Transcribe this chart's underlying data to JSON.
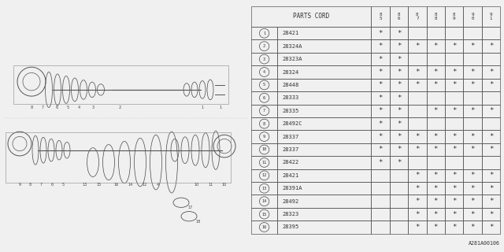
{
  "title": "A281A00106",
  "parts_cord_label": "PARTS CORD",
  "col_headers": [
    "8\n5",
    "8\n6",
    "8\n7",
    "8\n8",
    "8\n9",
    "9\n0",
    "9\n1"
  ],
  "rows": [
    {
      "num": 1,
      "code": "28421",
      "marks": [
        1,
        1,
        0,
        0,
        0,
        0,
        0
      ]
    },
    {
      "num": 2,
      "code": "28324A",
      "marks": [
        1,
        1,
        1,
        1,
        1,
        1,
        1
      ]
    },
    {
      "num": 3,
      "code": "28323A",
      "marks": [
        1,
        1,
        0,
        0,
        0,
        0,
        0
      ]
    },
    {
      "num": 4,
      "code": "28324",
      "marks": [
        1,
        1,
        1,
        1,
        1,
        1,
        1
      ]
    },
    {
      "num": 5,
      "code": "28448",
      "marks": [
        1,
        1,
        1,
        1,
        1,
        1,
        1
      ]
    },
    {
      "num": 6,
      "code": "28333",
      "marks": [
        1,
        1,
        0,
        0,
        0,
        0,
        0
      ]
    },
    {
      "num": 7,
      "code": "28335",
      "marks": [
        1,
        1,
        0,
        1,
        1,
        1,
        1
      ]
    },
    {
      "num": 8,
      "code": "28492C",
      "marks": [
        1,
        1,
        0,
        0,
        0,
        0,
        0
      ]
    },
    {
      "num": 9,
      "code": "28337",
      "marks": [
        1,
        1,
        1,
        1,
        1,
        1,
        1
      ]
    },
    {
      "num": 10,
      "code": "28337",
      "marks": [
        1,
        1,
        1,
        1,
        1,
        1,
        1
      ]
    },
    {
      "num": 11,
      "code": "28422",
      "marks": [
        1,
        1,
        0,
        0,
        0,
        0,
        0
      ]
    },
    {
      "num": 12,
      "code": "28421",
      "marks": [
        0,
        0,
        1,
        1,
        1,
        1,
        1
      ]
    },
    {
      "num": 13,
      "code": "28391A",
      "marks": [
        0,
        0,
        1,
        1,
        1,
        1,
        1
      ]
    },
    {
      "num": 14,
      "code": "28492",
      "marks": [
        0,
        0,
        1,
        1,
        1,
        1,
        1
      ]
    },
    {
      "num": 15,
      "code": "28323",
      "marks": [
        0,
        0,
        1,
        1,
        1,
        1,
        1
      ]
    },
    {
      "num": 16,
      "code": "28395",
      "marks": [
        0,
        0,
        1,
        1,
        1,
        1,
        1
      ]
    }
  ],
  "bg_color": "#f0f0f0",
  "table_bg": "#f0f0f0",
  "table_line_color": "#555555",
  "text_color": "#333333",
  "diagram_line_color": "#555555"
}
